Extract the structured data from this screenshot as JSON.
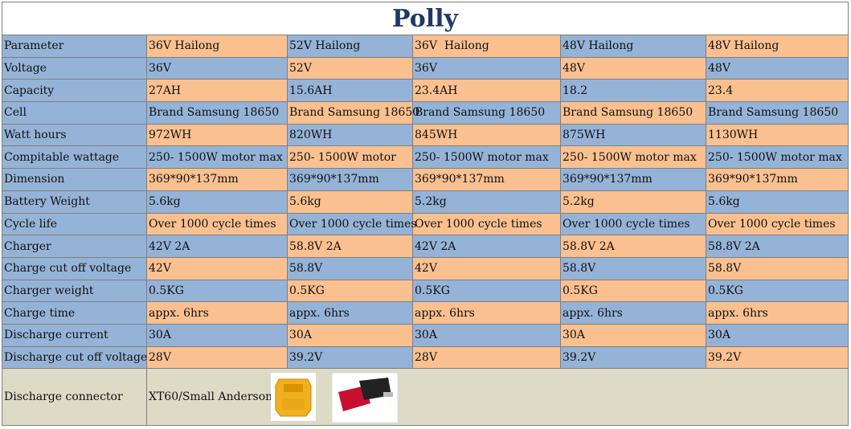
{
  "header": {
    "title": "Polly"
  },
  "table": {
    "rows": [
      [
        "Parameter",
        "36V Hailong",
        "52V Hailong",
        "36V  Hailong",
        "48V Hailong",
        "48V Hailong"
      ],
      [
        "Voltage",
        "36V",
        "52V",
        "36V",
        "48V",
        "48V"
      ],
      [
        "Capacity",
        "27AH",
        "15.6AH",
        "23.4AH",
        "18.2",
        "23.4"
      ],
      [
        "Cell",
        "Brand Samsung 18650",
        "Brand Samsung 18650",
        "Brand Samsung 18650",
        "Brand Samsung 18650",
        "Brand Samsung 18650"
      ],
      [
        "Watt hours",
        "972WH",
        "820WH",
        "845WH",
        "875WH",
        "1130WH"
      ],
      [
        "Compitable wattage",
        "250- 1500W motor max",
        "250- 1500W motor",
        "250- 1500W motor max",
        "250- 1500W motor max",
        "250- 1500W motor max"
      ],
      [
        "Dimension",
        "369*90*137mm",
        "369*90*137mm",
        "369*90*137mm",
        "369*90*137mm",
        "369*90*137mm"
      ],
      [
        "Battery Weight",
        "5.6kg",
        "5.6kg",
        "5.2kg",
        "5.2kg",
        "5.6kg"
      ],
      [
        "Cycle life",
        "Over 1000 cycle times",
        "Over 1000 cycle times",
        "Over 1000 cycle times",
        "Over 1000 cycle times",
        "Over 1000 cycle times"
      ],
      [
        "Charger",
        "42V 2A",
        "58.8V 2A",
        "42V 2A",
        "58.8V 2A",
        "58.8V 2A"
      ],
      [
        "Charge cut off voltage",
        "42V",
        "58.8V",
        "42V",
        "58.8V",
        "58.8V"
      ],
      [
        "Charger weight",
        "0.5KG",
        "0.5KG",
        "0.5KG",
        "0.5KG",
        "0.5KG"
      ],
      [
        "Charge time",
        "appx. 6hrs",
        "appx. 6hrs",
        "appx. 6hrs",
        "appx. 6hrs",
        "appx. 6hrs"
      ],
      [
        "Discharge current",
        "30A",
        "30A",
        "30A",
        "30A",
        "30A"
      ],
      [
        "Discharge cut off voltage",
        "28V",
        "39.2V",
        "28V",
        "39.2V",
        "39.2V"
      ]
    ],
    "connector": [
      "Discharge connector",
      "XT60/Small Anderson"
    ]
  }
}
